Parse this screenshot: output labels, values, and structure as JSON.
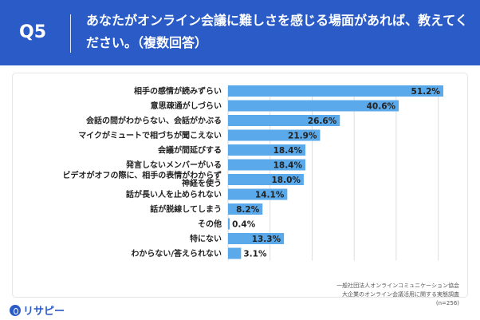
{
  "header": {
    "q_label": "Q5",
    "title": "あなたがオンライン会議に難しさを感じる場面があれば、教えてください。（複数回答）"
  },
  "source": {
    "line1": "一般社団法人オンラインコミュニケーション協会",
    "line2": "大企業のオンライン会議活用に関する実態調査",
    "line3": "(n=256)"
  },
  "logo": {
    "text": "リサピー"
  },
  "colors": {
    "header": "#2a5bc7",
    "bar": "#5aa9ea",
    "grid": "#dddddd"
  },
  "chart_data": {
    "type": "bar",
    "orientation": "horizontal",
    "title": "",
    "xlabel": "",
    "ylabel": "",
    "xlim": [
      0,
      55
    ],
    "grid": true,
    "categories": [
      "相手の感情が読みずらい",
      "意思疎通がしづらい",
      "会話の間がわからない、会話がかぶる",
      "マイクがミュートで相づちが聞こえない",
      "会議が間延びする",
      "発言しないメンバーがいる",
      "ビデオがオフの際に、相手の表情がわからず神経を使う",
      "話が長い人を止められない",
      "話が脱線してしまう",
      "その他",
      "特にない",
      "わからない/答えられない"
    ],
    "labels": [
      [
        "相手の感情が読みずらい"
      ],
      [
        "意思疎通がしづらい"
      ],
      [
        "会話の間がわからない、会話がかぶる"
      ],
      [
        "マイクがミュートで相づちが聞こえない"
      ],
      [
        "会議が間延びする"
      ],
      [
        "発言しないメンバーがいる"
      ],
      [
        "ビデオがオフの際に、相手の表情がわからず",
        "神経を使う"
      ],
      [
        "話が長い人を止められない"
      ],
      [
        "話が脱線してしまう"
      ],
      [
        "その他"
      ],
      [
        "特にない"
      ],
      [
        "わからない/答えられない"
      ]
    ],
    "values": [
      51.2,
      40.6,
      26.6,
      21.9,
      18.4,
      18.4,
      18.0,
      14.1,
      8.2,
      0.4,
      13.3,
      3.1
    ],
    "value_labels": [
      "51.2%",
      "40.6%",
      "26.6%",
      "21.9%",
      "18.4%",
      "18.4%",
      "18.0%",
      "14.1%",
      "8.2%",
      "0.4%",
      "13.3%",
      "3.1%"
    ]
  }
}
